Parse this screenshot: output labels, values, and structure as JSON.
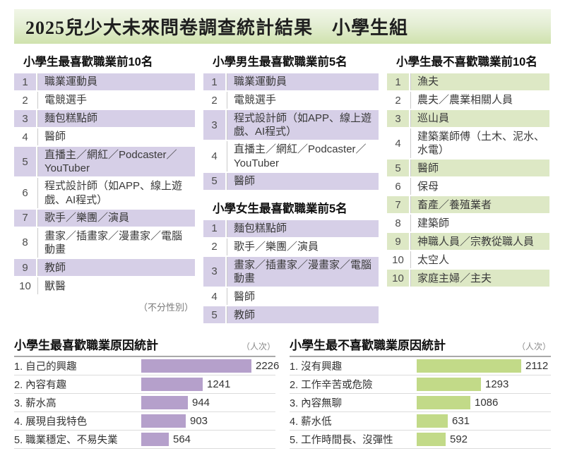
{
  "title": "2025兒少大未來問卷調查統計結果　小學生組",
  "tables": {
    "favorite_all": {
      "header": "小學生最喜歡職業前10名",
      "note": "（不分性別）",
      "rows": [
        {
          "rank": "1",
          "label": "職業運動員"
        },
        {
          "rank": "2",
          "label": "電競選手"
        },
        {
          "rank": "3",
          "label": "麵包糕點師"
        },
        {
          "rank": "4",
          "label": "醫師"
        },
        {
          "rank": "5",
          "label": "直播主／網紅／Podcaster／YouTuber"
        },
        {
          "rank": "6",
          "label": "程式設計師（如APP、線上遊戲、AI程式）"
        },
        {
          "rank": "7",
          "label": "歌手／樂團／演員"
        },
        {
          "rank": "8",
          "label": "畫家／插畫家／漫畫家／電腦動畫"
        },
        {
          "rank": "9",
          "label": "教師"
        },
        {
          "rank": "10",
          "label": "獸醫"
        }
      ]
    },
    "favorite_boys": {
      "header": "小學男生最喜歡職業前5名",
      "rows": [
        {
          "rank": "1",
          "label": "職業運動員"
        },
        {
          "rank": "2",
          "label": "電競選手"
        },
        {
          "rank": "3",
          "label": "程式設計師（如APP、線上遊戲、AI程式）"
        },
        {
          "rank": "4",
          "label": "直播主／網紅／Podcaster／YouTuber"
        },
        {
          "rank": "5",
          "label": "醫師"
        }
      ]
    },
    "favorite_girls": {
      "header": "小學女生最喜歡職業前5名",
      "rows": [
        {
          "rank": "1",
          "label": "麵包糕點師"
        },
        {
          "rank": "2",
          "label": "歌手／樂團／演員"
        },
        {
          "rank": "3",
          "label": "畫家／插畫家／漫畫家／電腦動畫"
        },
        {
          "rank": "4",
          "label": "醫師"
        },
        {
          "rank": "5",
          "label": "教師"
        }
      ]
    },
    "disliked_all": {
      "header": "小學生最不喜歡職業前10名",
      "rows": [
        {
          "rank": "1",
          "label": "漁夫"
        },
        {
          "rank": "2",
          "label": "農夫／農業相關人員"
        },
        {
          "rank": "3",
          "label": "巡山員"
        },
        {
          "rank": "4",
          "label": "建築業師傅（土木、泥水、水電）"
        },
        {
          "rank": "5",
          "label": "醫師"
        },
        {
          "rank": "6",
          "label": "保母"
        },
        {
          "rank": "7",
          "label": "畜產／養殖業者"
        },
        {
          "rank": "8",
          "label": "建築師"
        },
        {
          "rank": "9",
          "label": "神職人員／宗教從職人員"
        },
        {
          "rank": "10",
          "label": "太空人"
        },
        {
          "rank": "10",
          "label": "家庭主婦／主夫"
        }
      ]
    }
  },
  "chart_data": [
    {
      "type": "bar",
      "title": "小學生最喜歡職業原因統計",
      "unit": "（人次）",
      "orientation": "horizontal",
      "categories": [
        "自己的興趣",
        "內容有趣",
        "薪水高",
        "展現自我特色",
        "職業穩定、不易失業"
      ],
      "values": [
        2226,
        1241,
        944,
        903,
        564
      ],
      "bar_color": "#b5a0cb",
      "xlim": [
        0,
        2300
      ],
      "grid": false,
      "legend": false
    },
    {
      "type": "bar",
      "title": "小學生最不喜歡職業原因統計",
      "unit": "（人次）",
      "orientation": "horizontal",
      "categories": [
        "沒有興趣",
        "工作辛苦或危險",
        "內容無聊",
        "薪水低",
        "工作時間長、沒彈性"
      ],
      "values": [
        2112,
        1293,
        1086,
        631,
        592
      ],
      "bar_color": "#c2da88",
      "xlim": [
        0,
        2300
      ],
      "grid": false,
      "legend": false
    }
  ],
  "colors": {
    "title_band_top": "#f1f6e7",
    "title_band_bottom": "#cfe2ad",
    "row_shade_purple": "#d6cfe7",
    "row_shade_green": "#dde8c5",
    "bar_purple": "#b5a0cb",
    "bar_green": "#c2da88"
  }
}
